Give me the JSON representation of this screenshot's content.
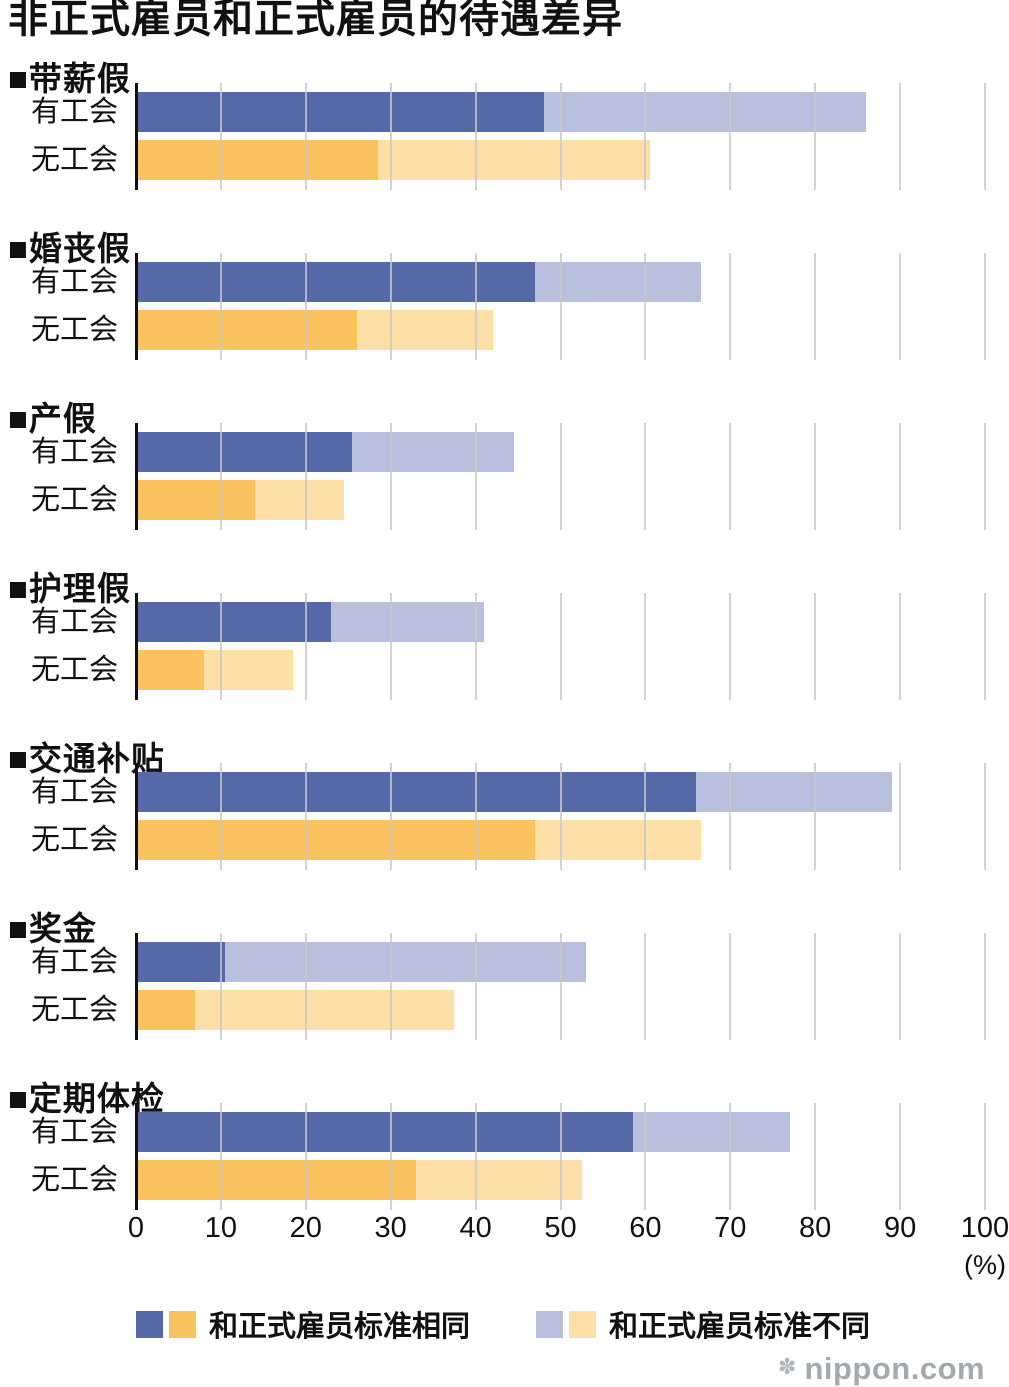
{
  "title": "非正式雇员和正式雇员的待遇差异",
  "chart_data": {
    "type": "bar",
    "orientation": "horizontal",
    "stacked": true,
    "unit": "%",
    "xlim": [
      0,
      100
    ],
    "x_ticks": [
      "0",
      "10",
      "20",
      "30",
      "40",
      "50",
      "60",
      "70",
      "80",
      "90",
      "100"
    ],
    "x_axis_unit_label": "(%)",
    "grid": true,
    "legend_position": "bottom",
    "legend": [
      {
        "label": "和正式雇员标准相同",
        "colors": [
          "#5569a8",
          "#fac35f"
        ]
      },
      {
        "label": "和正式雇员标准不同",
        "colors": [
          "#b8c0dd",
          "#fddfa8"
        ]
      }
    ],
    "colors": {
      "union_same": "#5569a8",
      "union_different": "#b8c0dd",
      "nonunion_same": "#fac35f",
      "nonunion_different": "#fddfa8",
      "gridline": "#c8c8c8",
      "axis": "#111111"
    },
    "groups": [
      {
        "category": "■带薪假",
        "rows": [
          {
            "label": "有工会",
            "same": 48.0,
            "different": 38.0
          },
          {
            "label": "无工会",
            "same": 28.5,
            "different": 32.0
          }
        ]
      },
      {
        "category": "■婚丧假",
        "rows": [
          {
            "label": "有工会",
            "same": 47.0,
            "different": 19.5
          },
          {
            "label": "无工会",
            "same": 26.0,
            "different": 16.0
          }
        ]
      },
      {
        "category": "■产假",
        "rows": [
          {
            "label": "有工会",
            "same": 25.5,
            "different": 19.0
          },
          {
            "label": "无工会",
            "same": 14.0,
            "different": 10.5
          }
        ]
      },
      {
        "category": "■护理假",
        "rows": [
          {
            "label": "有工会",
            "same": 23.0,
            "different": 18.0
          },
          {
            "label": "无工会",
            "same": 8.0,
            "different": 10.5
          }
        ]
      },
      {
        "category": "■交通补贴",
        "rows": [
          {
            "label": "有工会",
            "same": 66.0,
            "different": 23.0
          },
          {
            "label": "无工会",
            "same": 47.0,
            "different": 19.5
          }
        ]
      },
      {
        "category": "■奖金",
        "rows": [
          {
            "label": "有工会",
            "same": 10.5,
            "different": 42.5
          },
          {
            "label": "无工会",
            "same": 7.0,
            "different": 30.5
          }
        ]
      },
      {
        "category": "■定期体检",
        "rows": [
          {
            "label": "有工会",
            "same": 58.5,
            "different": 18.5
          },
          {
            "label": "无工会",
            "same": 33.0,
            "different": 19.5
          }
        ]
      }
    ]
  },
  "watermark": {
    "logo": "✽",
    "text": "nippon.com"
  }
}
